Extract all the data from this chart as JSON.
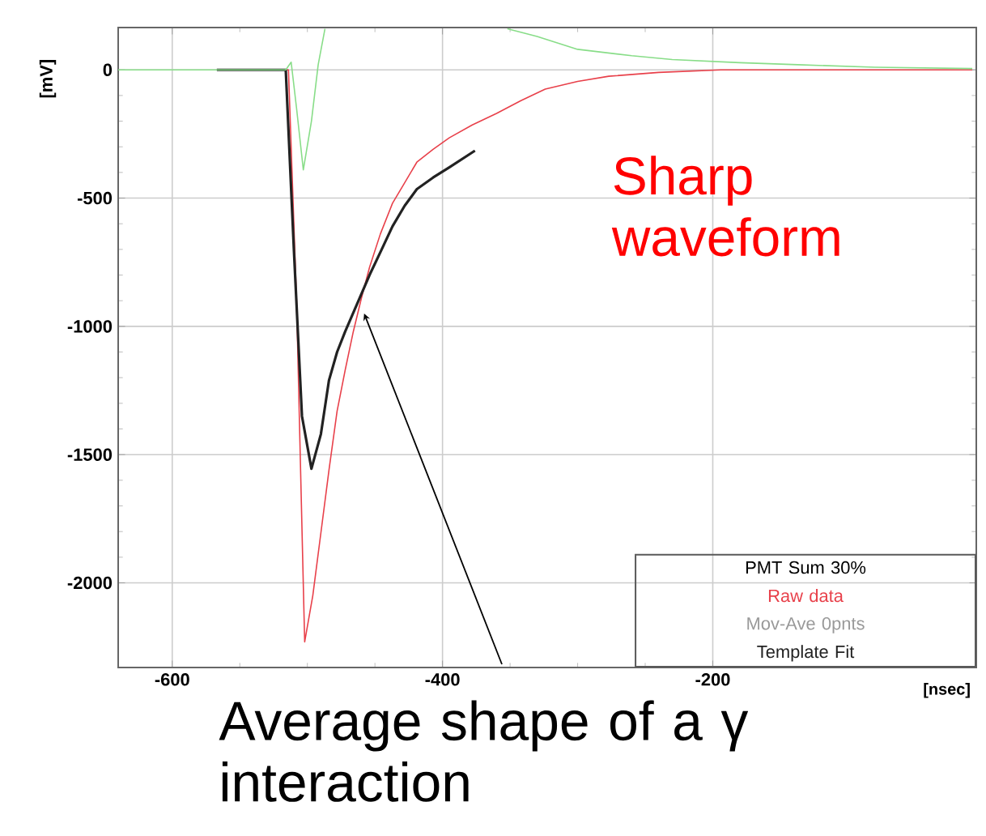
{
  "chart_data": {
    "type": "line",
    "xlabel": "[nsec]",
    "ylabel": "[mV]",
    "legend_title": "PMT Sum 30%",
    "xlim": [
      -640,
      -5
    ],
    "ylim": [
      -2330,
      165
    ],
    "xticks": [
      -600,
      -400,
      -200
    ],
    "yticks": [
      0,
      -500,
      -1000,
      -1500,
      -2000
    ],
    "grid": true,
    "legend": "bottom right",
    "series": [
      {
        "name": "Raw data",
        "color": "#e8404a",
        "x": [
          -567,
          -514,
          -508,
          -502,
          -496,
          -490,
          -484,
          -478,
          -472,
          -466,
          -460,
          -454,
          -446,
          -437,
          -428,
          -419,
          -407,
          -395,
          -378,
          -360,
          -342,
          -324,
          -300,
          -277,
          -240,
          -194,
          -150,
          -100,
          -50,
          -8
        ],
        "values": [
          0,
          0,
          -900,
          -2230,
          -2050,
          -1805,
          -1560,
          -1330,
          -1170,
          -1020,
          -890,
          -770,
          -640,
          -520,
          -440,
          -360,
          -310,
          -265,
          -215,
          -170,
          -120,
          -75,
          -45,
          -25,
          -10,
          0,
          0,
          0,
          0,
          0
        ]
      },
      {
        "name": "Mov-Ave 0pnts",
        "color": "#999999",
        "values": [
          null
        ]
      },
      {
        "name": "Template Fit",
        "color": "#222222",
        "x": [
          -567,
          -516,
          -510,
          -504,
          -497,
          -490,
          -484,
          -478,
          -472,
          -463,
          -454,
          -445,
          -437,
          -428,
          -419,
          -407,
          -395,
          -376
        ],
        "values": [
          0,
          0,
          -700,
          -1350,
          -1555,
          -1420,
          -1210,
          -1100,
          -1020,
          -910,
          -800,
          -700,
          -610,
          -530,
          -465,
          -420,
          -380,
          -315
        ]
      },
      {
        "color": "#88dd88",
        "x": [
          -640,
          -600,
          -560,
          -516,
          -512,
          -508,
          -503,
          -497,
          -492,
          -487,
          -420,
          -352,
          -330,
          -300,
          -260,
          -230,
          -180,
          -137,
          -80,
          -8
        ],
        "values": [
          0,
          0,
          0,
          0,
          30,
          -150,
          -390,
          -200,
          20,
          160,
          null,
          160,
          130,
          80,
          55,
          40,
          28,
          20,
          10,
          5
        ]
      }
    ],
    "annotations": [
      "Sharp waveform",
      {
        "text": "Average shape of a γ interaction",
        "x": -458,
        "y": -950
      }
    ]
  }
}
